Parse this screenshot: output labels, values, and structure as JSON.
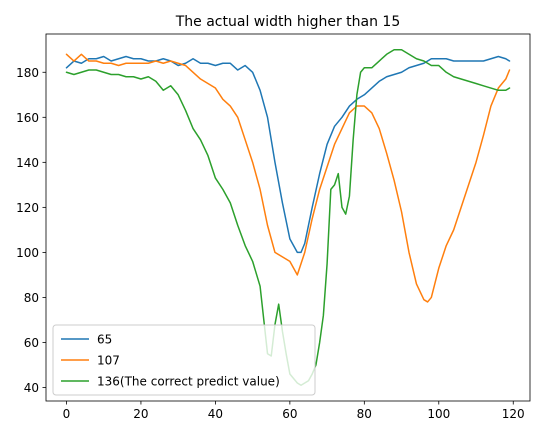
{
  "chart_data": {
    "type": "line",
    "title": "The actual width higher than 15",
    "xlabel": "",
    "ylabel": "",
    "xlim": [
      -5.5,
      124.5
    ],
    "ylim": [
      34,
      197
    ],
    "xticks": [
      0,
      20,
      40,
      60,
      80,
      100,
      120
    ],
    "yticks": [
      40,
      60,
      80,
      100,
      120,
      140,
      160,
      180
    ],
    "grid": false,
    "legend_position": "lower-left",
    "series": [
      {
        "name": "65",
        "color": "#1f77b4",
        "x": [
          0,
          2,
          4,
          6,
          8,
          10,
          12,
          14,
          16,
          18,
          20,
          22,
          24,
          26,
          28,
          30,
          32,
          34,
          36,
          38,
          40,
          42,
          44,
          46,
          48,
          50,
          52,
          54,
          56,
          58,
          60,
          62,
          63,
          64,
          66,
          68,
          70,
          72,
          74,
          76,
          78,
          80,
          82,
          84,
          86,
          88,
          90,
          92,
          94,
          96,
          98,
          100,
          102,
          104,
          106,
          108,
          110,
          112,
          114,
          116,
          118,
          119
        ],
        "y": [
          182,
          185,
          184,
          186,
          186,
          187,
          185,
          186,
          187,
          186,
          186,
          185,
          185,
          186,
          185,
          183,
          184,
          186,
          184,
          184,
          183,
          184,
          184,
          181,
          183,
          180,
          172,
          160,
          140,
          122,
          106,
          100,
          100,
          104,
          120,
          135,
          148,
          156,
          160,
          165,
          168,
          170,
          173,
          176,
          178,
          179,
          180,
          182,
          183,
          184,
          186,
          186,
          186,
          185,
          185,
          185,
          185,
          185,
          186,
          187,
          186,
          185
        ]
      },
      {
        "name": "107",
        "color": "#ff7f0e",
        "x": [
          0,
          2,
          4,
          6,
          8,
          10,
          12,
          14,
          16,
          18,
          20,
          22,
          24,
          26,
          28,
          30,
          32,
          34,
          36,
          38,
          40,
          42,
          44,
          46,
          48,
          50,
          52,
          54,
          56,
          58,
          60,
          62,
          64,
          66,
          68,
          70,
          72,
          74,
          76,
          78,
          80,
          82,
          84,
          86,
          88,
          90,
          92,
          94,
          96,
          97,
          98,
          100,
          102,
          104,
          106,
          108,
          110,
          112,
          114,
          116,
          118,
          119
        ],
        "y": [
          188,
          185,
          188,
          185,
          185,
          184,
          184,
          183,
          184,
          184,
          184,
          184,
          185,
          184,
          185,
          184,
          183,
          180,
          177,
          175,
          173,
          168,
          165,
          160,
          150,
          140,
          128,
          112,
          100,
          98,
          96,
          90,
          100,
          115,
          128,
          138,
          148,
          155,
          162,
          165,
          165,
          162,
          155,
          144,
          132,
          118,
          100,
          86,
          79,
          78,
          80,
          93,
          103,
          110,
          120,
          130,
          140,
          152,
          165,
          173,
          177,
          181
        ]
      },
      {
        "name": "136(The correct predict value)",
        "color": "#2ca02c",
        "x": [
          0,
          2,
          4,
          6,
          8,
          10,
          12,
          14,
          16,
          18,
          20,
          22,
          24,
          26,
          28,
          30,
          32,
          34,
          36,
          38,
          40,
          42,
          44,
          46,
          48,
          50,
          52,
          54,
          55,
          56,
          57,
          58,
          59,
          60,
          61,
          62,
          63,
          64,
          65,
          66,
          67,
          68,
          69,
          70,
          71,
          72,
          73,
          74,
          75,
          76,
          77,
          78,
          79,
          80,
          82,
          84,
          86,
          88,
          90,
          92,
          94,
          96,
          98,
          100,
          102,
          104,
          106,
          108,
          110,
          112,
          114,
          116,
          118,
          119
        ],
        "y": [
          180,
          179,
          180,
          181,
          181,
          180,
          179,
          179,
          178,
          178,
          177,
          178,
          176,
          172,
          174,
          170,
          163,
          155,
          150,
          143,
          133,
          128,
          122,
          112,
          103,
          96,
          85,
          55,
          54,
          68,
          77,
          65,
          55,
          46,
          44,
          42,
          41,
          42,
          43,
          46,
          50,
          60,
          72,
          95,
          128,
          130,
          135,
          120,
          117,
          125,
          150,
          170,
          180,
          182,
          182,
          185,
          188,
          190,
          190,
          188,
          186,
          185,
          183,
          183,
          180,
          178,
          177,
          176,
          175,
          174,
          173,
          172,
          172,
          173
        ]
      }
    ]
  }
}
